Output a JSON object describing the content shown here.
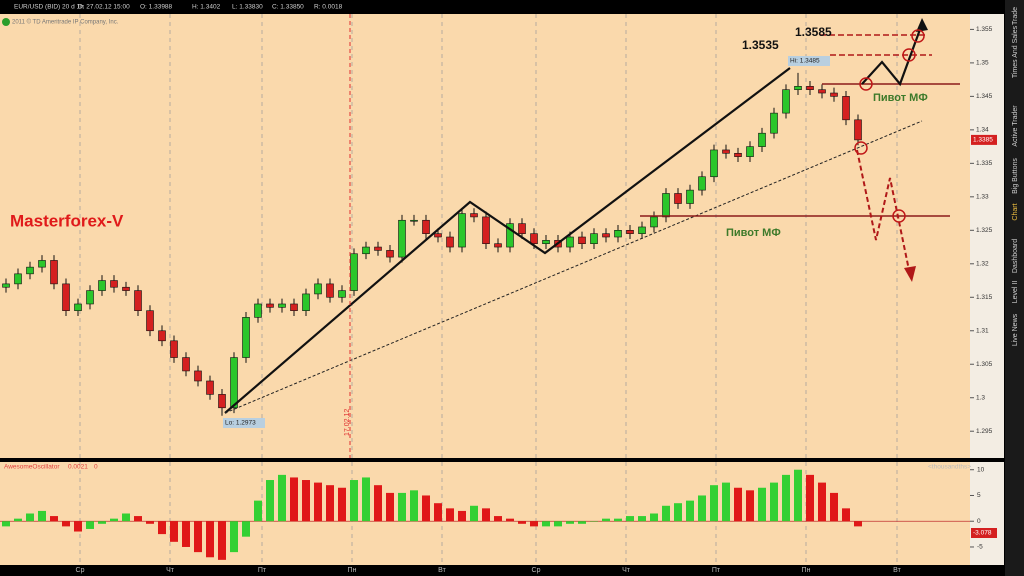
{
  "header": {
    "symbol": "EUR/USD (BID) 20 d 1h",
    "date": "D: 27.02.12 15:00",
    "open": "O: 1.33988",
    "high": "H: 1.3402",
    "low": "L: 1.33830",
    "close": "C: 1.33850",
    "range": "R: 0.0018",
    "copyright": "2011 © TD Ameritrade IP Company, Inc."
  },
  "side_tabs": [
    "Trade",
    "Times And Sales",
    "Active Trader",
    "Big Buttons",
    "Chart",
    "Dashboard",
    "Level II",
    "Live News"
  ],
  "time_axis_labels": [
    "Ср",
    "Чт",
    "Пт",
    "Пн",
    "Вт",
    "Ср",
    "Чт",
    "Пт",
    "Пн",
    "Вт"
  ],
  "chart_data": [
    {
      "type": "candlestick",
      "up_color": "#2bc62b",
      "down_color": "#d42020",
      "ylim": [
        1.291,
        1.3573
      ],
      "yticks": [
        1.295,
        1.3,
        1.305,
        1.31,
        1.315,
        1.32,
        1.325,
        1.33,
        1.335,
        1.34,
        1.345,
        1.35,
        1.355
      ],
      "last_price": 1.3385,
      "annotations": [
        "Masterforex-V",
        "1.3535",
        "1.3585",
        "Пивот МФ",
        "Пивот МФ",
        "Hi: 1.3485",
        "Lo: 1.2973",
        "17.02.12"
      ],
      "open": [
        1.3165,
        1.317,
        1.3185,
        1.3195,
        1.3205,
        1.317,
        1.313,
        1.314,
        1.316,
        1.3175,
        1.3165,
        1.316,
        1.313,
        1.31,
        1.3085,
        1.306,
        1.304,
        1.3025,
        1.3005,
        1.2985,
        1.306,
        1.312,
        1.314,
        1.3135,
        1.314,
        1.313,
        1.3155,
        1.317,
        1.315,
        1.316,
        1.3215,
        1.3225,
        1.322,
        1.321,
        1.3265,
        1.3265,
        1.3245,
        1.324,
        1.3225,
        1.3275,
        1.327,
        1.323,
        1.3225,
        1.326,
        1.3245,
        1.323,
        1.3235,
        1.3225,
        1.324,
        1.323,
        1.3245,
        1.324,
        1.325,
        1.3245,
        1.3255,
        1.327,
        1.3305,
        1.329,
        1.331,
        1.333,
        1.337,
        1.3365,
        1.336,
        1.3375,
        1.3395,
        1.3425,
        1.346,
        1.3465,
        1.346,
        1.3455,
        1.345,
        1.3415
      ],
      "high": [
        1.3178,
        1.3193,
        1.3203,
        1.3213,
        1.3213,
        1.3178,
        1.3148,
        1.3168,
        1.3183,
        1.3183,
        1.3173,
        1.3168,
        1.3138,
        1.3108,
        1.3093,
        1.3068,
        1.3048,
        1.3033,
        1.3013,
        1.3068,
        1.3128,
        1.3148,
        1.3148,
        1.3148,
        1.3148,
        1.3163,
        1.3178,
        1.3178,
        1.3168,
        1.3223,
        1.3233,
        1.3233,
        1.3228,
        1.3273,
        1.3273,
        1.3273,
        1.3253,
        1.3248,
        1.3283,
        1.3283,
        1.3278,
        1.3238,
        1.3268,
        1.3268,
        1.3253,
        1.3243,
        1.3243,
        1.3248,
        1.3248,
        1.3253,
        1.3253,
        1.3258,
        1.3258,
        1.3263,
        1.3278,
        1.3313,
        1.3313,
        1.3318,
        1.3338,
        1.3378,
        1.3378,
        1.3373,
        1.3383,
        1.3403,
        1.3433,
        1.3468,
        1.3485,
        1.3473,
        1.3468,
        1.3463,
        1.3458,
        1.3423
      ],
      "low": [
        1.3157,
        1.3162,
        1.3177,
        1.3187,
        1.3162,
        1.3122,
        1.3122,
        1.3132,
        1.3152,
        1.3157,
        1.3152,
        1.3122,
        1.3092,
        1.3077,
        1.3052,
        1.3032,
        1.3017,
        1.2997,
        1.2973,
        1.2977,
        1.3052,
        1.3112,
        1.3127,
        1.3127,
        1.3122,
        1.3122,
        1.3147,
        1.3142,
        1.3142,
        1.3152,
        1.3207,
        1.3212,
        1.3202,
        1.3202,
        1.3257,
        1.3237,
        1.3232,
        1.3217,
        1.3217,
        1.3262,
        1.3222,
        1.3217,
        1.3217,
        1.3237,
        1.3222,
        1.3222,
        1.3217,
        1.3217,
        1.3222,
        1.3222,
        1.3232,
        1.3232,
        1.3237,
        1.3237,
        1.3247,
        1.3262,
        1.3282,
        1.3282,
        1.3302,
        1.3322,
        1.3357,
        1.3352,
        1.3352,
        1.3367,
        1.3387,
        1.3417,
        1.3452,
        1.3452,
        1.3447,
        1.3442,
        1.3407,
        1.3377
      ],
      "close": [
        1.317,
        1.3185,
        1.3195,
        1.3205,
        1.317,
        1.313,
        1.314,
        1.316,
        1.3175,
        1.3165,
        1.316,
        1.313,
        1.31,
        1.3085,
        1.306,
        1.304,
        1.3025,
        1.3005,
        1.2985,
        1.306,
        1.312,
        1.314,
        1.3135,
        1.314,
        1.313,
        1.3155,
        1.317,
        1.315,
        1.316,
        1.3215,
        1.3225,
        1.322,
        1.321,
        1.3265,
        1.3265,
        1.3245,
        1.324,
        1.3225,
        1.3275,
        1.327,
        1.323,
        1.3225,
        1.326,
        1.3245,
        1.323,
        1.3235,
        1.3225,
        1.324,
        1.323,
        1.3245,
        1.324,
        1.325,
        1.3245,
        1.3255,
        1.327,
        1.3305,
        1.329,
        1.331,
        1.333,
        1.337,
        1.3365,
        1.336,
        1.3375,
        1.3395,
        1.3425,
        1.346,
        1.3465,
        1.346,
        1.3455,
        1.345,
        1.3415,
        1.3385
      ]
    },
    {
      "type": "bar",
      "title": "AwesomeOscillator",
      "readout": [
        "0.0021",
        "0"
      ],
      "units": "<thousandths>",
      "value_readout": "-3.078",
      "up_color": "#33d033",
      "down_color": "#e01818",
      "ylim": [
        -8.5,
        11.5
      ],
      "yticks": [
        -5,
        0,
        5,
        10
      ],
      "values": [
        -1.0,
        0.5,
        1.5,
        2.0,
        1.0,
        -1.0,
        -2.0,
        -1.5,
        -0.5,
        0.5,
        1.5,
        1.0,
        -0.5,
        -2.5,
        -4.0,
        -5.0,
        -6.0,
        -7.0,
        -7.5,
        -6.0,
        -3.0,
        4.0,
        8.0,
        9.0,
        8.5,
        8.0,
        7.5,
        7.0,
        6.5,
        8.0,
        8.5,
        7.0,
        5.5,
        5.5,
        6.0,
        5.0,
        3.5,
        2.5,
        2.0,
        3.0,
        2.5,
        1.0,
        0.5,
        -0.5,
        -1.0,
        -1.0,
        -1.0,
        -0.5,
        -0.5,
        0,
        0.5,
        0.5,
        1.0,
        1.0,
        1.5,
        3.0,
        3.5,
        4.0,
        5.0,
        7.0,
        7.5,
        6.5,
        6.0,
        6.5,
        7.5,
        9.0,
        10.0,
        9.0,
        7.5,
        5.5,
        2.5,
        -1.0
      ]
    }
  ]
}
